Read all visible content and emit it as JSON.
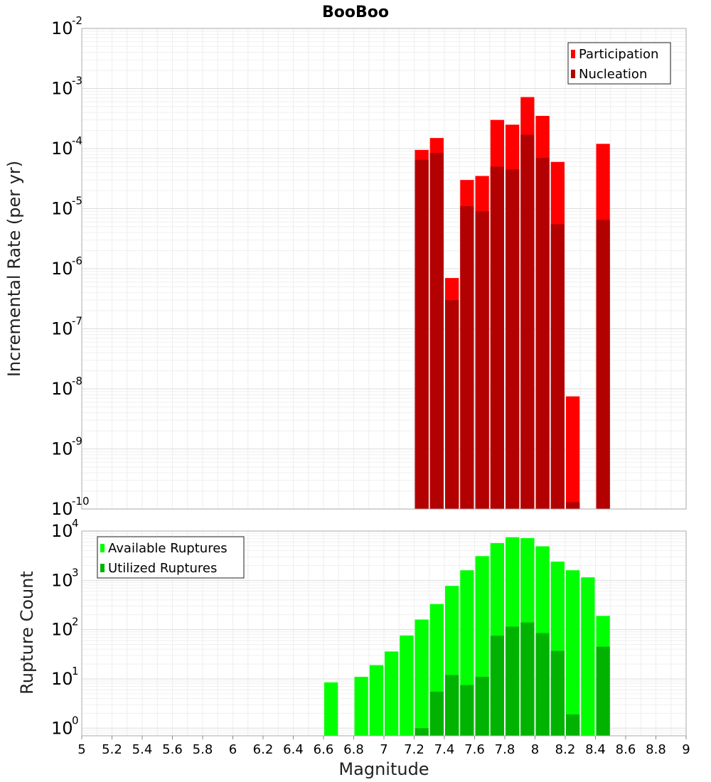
{
  "chart_data": [
    {
      "type": "bar",
      "title": "BooBoo",
      "ylabel": "Incremental Rate (per yr)",
      "yscale": "log",
      "ylim": [
        1e-10,
        0.01
      ],
      "xlim": [
        5,
        9
      ],
      "grid": true,
      "legend_position": "top-right",
      "x": [
        7.25,
        7.35,
        7.45,
        7.55,
        7.65,
        7.75,
        7.85,
        7.95,
        8.05,
        8.15,
        8.25,
        8.45
      ],
      "series": [
        {
          "name": "Participation",
          "color": "#ff0000",
          "values": [
            9.5e-05,
            0.00015,
            7e-07,
            3e-05,
            3.5e-05,
            0.0003,
            0.00025,
            0.00072,
            0.00035,
            6e-05,
            7.5e-09,
            0.00012
          ]
        },
        {
          "name": "Nucleation",
          "color": "#b30000",
          "values": [
            6.5e-05,
            8.5e-05,
            3e-07,
            1.1e-05,
            9e-06,
            5e-05,
            4.5e-05,
            0.00017,
            7e-05,
            5.5e-06,
            1.3e-10,
            6.5e-06
          ]
        }
      ]
    },
    {
      "type": "bar",
      "xlabel": "Magnitude",
      "ylabel": "Rupture Count",
      "yscale": "log",
      "ylim": [
        0.7,
        10000
      ],
      "xlim": [
        5,
        9
      ],
      "xticks": [
        "5",
        "5.2",
        "5.4",
        "5.6",
        "5.8",
        "6",
        "6.2",
        "6.4",
        "6.6",
        "6.8",
        "7",
        "7.2",
        "7.4",
        "7.6",
        "7.8",
        "8",
        "8.2",
        "8.4",
        "8.6",
        "8.8",
        "9"
      ],
      "grid": true,
      "legend_position": "top-left",
      "x": [
        6.65,
        6.85,
        6.95,
        7.05,
        7.15,
        7.25,
        7.35,
        7.45,
        7.55,
        7.65,
        7.75,
        7.85,
        7.95,
        8.05,
        8.15,
        8.25,
        8.35,
        8.45
      ],
      "series": [
        {
          "name": "Available Ruptures",
          "color": "#00ff00",
          "values": [
            8.5,
            11,
            19,
            36,
            76,
            160,
            330,
            770,
            1600,
            3100,
            5700,
            7500,
            7200,
            4900,
            2400,
            1600,
            1150,
            190
          ]
        },
        {
          "name": "Utilized Ruptures",
          "color": "#00b300",
          "values": [
            0,
            0,
            0,
            0,
            0,
            1,
            5.5,
            12,
            7.5,
            11,
            75,
            115,
            140,
            85,
            37,
            1.9,
            0,
            45
          ]
        }
      ]
    }
  ]
}
